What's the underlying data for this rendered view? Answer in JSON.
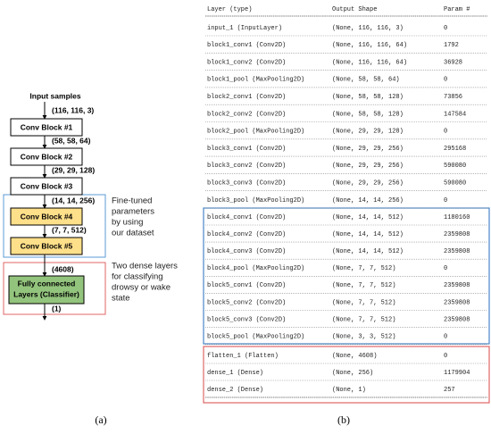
{
  "panel_a": {
    "input": "Input samples",
    "shapes": [
      "(116, 116, 3)",
      "(58, 58, 64)",
      "(29, 29, 128)",
      "(14, 14, 256)",
      "(7, 7, 512)",
      "(4608)",
      "(1)"
    ],
    "blocks": [
      "Conv Block #1",
      "Conv Block #2",
      "Conv Block #3",
      "Conv Block #4",
      "Conv Block #5"
    ],
    "classifier": [
      "Fully connected",
      "Layers (Classifier)"
    ],
    "notes": [
      [
        "Fine-tuned",
        "parameters",
        "by using",
        "our dataset"
      ],
      [
        "Two dense layers",
        "for classifying",
        "drowsy or wake",
        "state"
      ]
    ],
    "label": "(a)"
  },
  "panel_b": {
    "columns": [
      "Layer (type)",
      "Output Shape",
      "Param #"
    ],
    "rows": [
      [
        "input_1 (InputLayer)",
        "(None, 116, 116, 3)",
        0
      ],
      [
        "block1_conv1 (Conv2D)",
        "(None, 116, 116, 64)",
        1792
      ],
      [
        "block1_conv2 (Conv2D)",
        "(None, 116, 116, 64)",
        36928
      ],
      [
        "block1_pool (MaxPooling2D)",
        "(None, 58, 58, 64)",
        0
      ],
      [
        "block2_conv1 (Conv2D)",
        "(None, 58, 58, 128)",
        73856
      ],
      [
        "block2_conv2 (Conv2D)",
        "(None, 58, 58, 128)",
        147584
      ],
      [
        "block2_pool (MaxPooling2D)",
        "(None, 29, 29, 128)",
        0
      ],
      [
        "block3_conv1 (Conv2D)",
        "(None, 29, 29, 256)",
        295168
      ],
      [
        "block3_conv2 (Conv2D)",
        "(None, 29, 29, 256)",
        590080
      ],
      [
        "block3_conv3 (Conv2D)",
        "(None, 29, 29, 256)",
        590080
      ],
      [
        "block3_pool (MaxPooling2D)",
        "(None, 14, 14, 256)",
        0
      ],
      [
        "block4_conv1 (Conv2D)",
        "(None, 14, 14, 512)",
        1180160
      ],
      [
        "block4_conv2 (Conv2D)",
        "(None, 14, 14, 512)",
        2359808
      ],
      [
        "block4_conv3 (Conv2D)",
        "(None, 14, 14, 512)",
        2359808
      ],
      [
        "block4_pool (MaxPooling2D)",
        "(None, 7, 7, 512)",
        0
      ],
      [
        "block5_conv1 (Conv2D)",
        "(None, 7, 7, 512)",
        2359808
      ],
      [
        "block5_conv2 (Conv2D)",
        "(None, 7, 7, 512)",
        2359808
      ],
      [
        "block5_conv3 (Conv2D)",
        "(None, 7, 7, 512)",
        2359808
      ],
      [
        "block5_pool (MaxPooling2D)",
        "(None, 3, 3, 512)",
        0
      ],
      [
        "flatten_1 (Flatten)",
        "(None, 4608)",
        0
      ],
      [
        "dense_1 (Dense)",
        "(None, 256)",
        1179904
      ],
      [
        "dense_2 (Dense)",
        "(None, 1)",
        257
      ]
    ],
    "label": "(b)"
  }
}
